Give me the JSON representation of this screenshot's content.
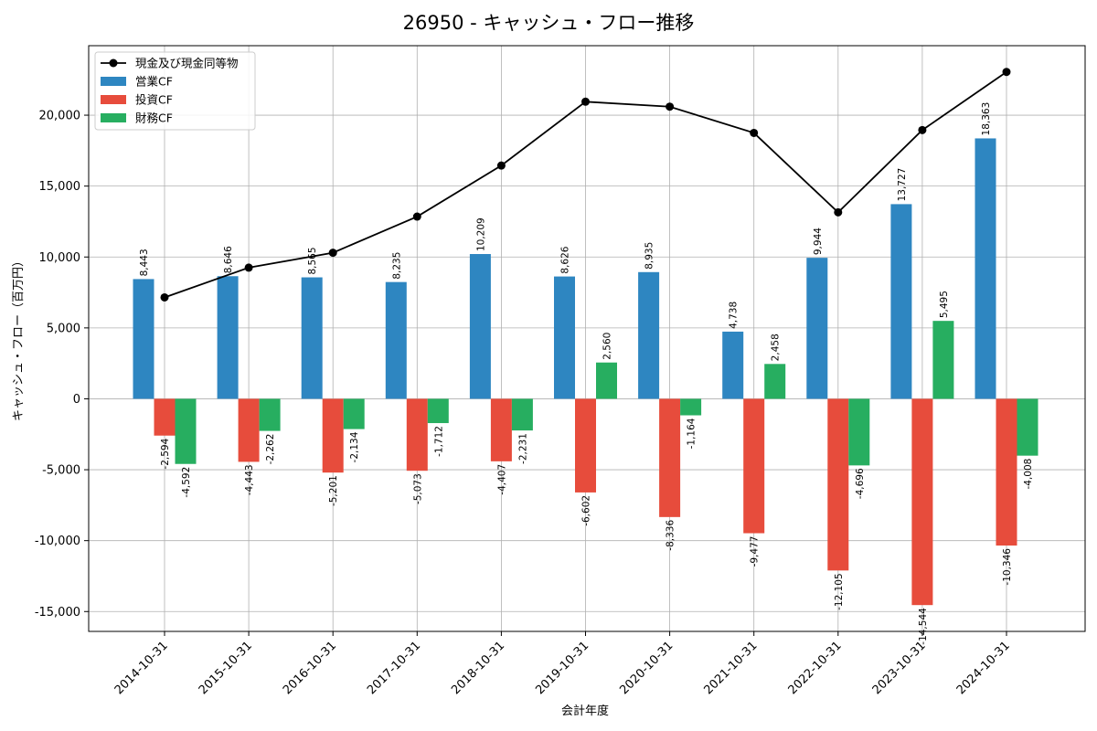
{
  "chart_data": {
    "type": "bar",
    "title": "26950 - キャッシュ・フロー推移",
    "xlabel": "会計年度",
    "ylabel": "キャッシュ・フロー（百万円）",
    "categories": [
      "2014-10-31",
      "2015-10-31",
      "2016-10-31",
      "2017-10-31",
      "2018-10-31",
      "2019-10-31",
      "2020-10-31",
      "2021-10-31",
      "2022-10-31",
      "2023-10-31",
      "2024-10-31"
    ],
    "series": [
      {
        "name": "営業CF",
        "kind": "bar",
        "color": "#2e86c1",
        "values": [
          8443,
          8646,
          8565,
          8235,
          10209,
          8626,
          8935,
          4738,
          9944,
          13727,
          18363
        ],
        "labels": [
          "8,443",
          "8,646",
          "8,565",
          "8,235",
          "10,209",
          "8,626",
          "8,935",
          "4,738",
          "9,944",
          "13,727",
          "18,363"
        ]
      },
      {
        "name": "投資CF",
        "kind": "bar",
        "color": "#e74c3c",
        "values": [
          -2594,
          -4443,
          -5201,
          -5073,
          -4407,
          -6602,
          -8336,
          -9477,
          -12105,
          -14544,
          -10346
        ],
        "labels": [
          "-2,594",
          "-4,443",
          "-5,201",
          "-5,073",
          "-4,407",
          "-6,602",
          "-8,336",
          "-9,477",
          "-12,105",
          "-14,544",
          "-10,346"
        ]
      },
      {
        "name": "財務CF",
        "kind": "bar",
        "color": "#27ae60",
        "values": [
          -4592,
          -2262,
          -2134,
          -1712,
          -2231,
          2560,
          -1164,
          2458,
          -4696,
          5495,
          -4008
        ],
        "labels": [
          "-4,592",
          "-2,262",
          "-2,134",
          "-1,712",
          "-2,231",
          "2,560",
          "-1,164",
          "2,458",
          "-4,696",
          "5,495",
          "-4,008"
        ]
      },
      {
        "name": "現金及び現金同等物",
        "kind": "line",
        "color": "#000000",
        "values": [
          7150,
          9250,
          10300,
          12850,
          16450,
          20950,
          20600,
          18750,
          13150,
          18950,
          23050
        ]
      }
    ],
    "ylim": [
      -16400,
      24900
    ],
    "yticks": [
      -15000,
      -10000,
      -5000,
      0,
      5000,
      10000,
      15000,
      20000
    ],
    "ytick_labels": [
      "-15,000",
      "-10,000",
      "-5,000",
      "0",
      "5,000",
      "10,000",
      "15,000",
      "20,000"
    ],
    "grid": true,
    "legend_position": "top-left"
  }
}
